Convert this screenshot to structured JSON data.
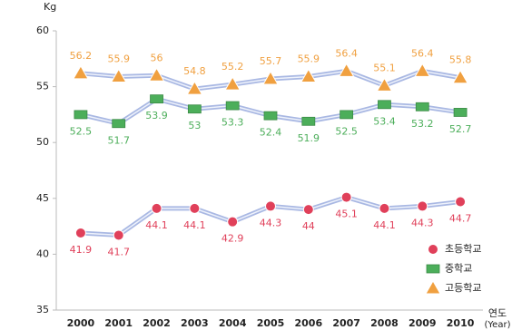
{
  "chart_data": {
    "type": "line",
    "y_label": "Kg",
    "x_label": "연도",
    "x_label_sub": "(Year)",
    "categories": [
      "2000",
      "2001",
      "2002",
      "2003",
      "2004",
      "2005",
      "2006",
      "2007",
      "2008",
      "2009",
      "2010"
    ],
    "series": [
      {
        "name": "초등학교",
        "color": "#e0405a",
        "marker": "circle",
        "label_position": "below",
        "values": [
          41.9,
          41.7,
          44.1,
          44.1,
          42.9,
          44.3,
          44,
          45.1,
          44.1,
          44.3,
          44.7
        ]
      },
      {
        "name": "중학교",
        "color": "#4cae5a",
        "marker": "square",
        "label_position": "below",
        "values": [
          52.5,
          51.7,
          53.9,
          53,
          53.3,
          52.4,
          51.9,
          52.5,
          53.4,
          53.2,
          52.7
        ]
      },
      {
        "name": "고등학교",
        "color": "#f0a040",
        "marker": "triangle",
        "label_position": "above",
        "values": [
          56.2,
          55.9,
          56,
          54.8,
          55.2,
          55.7,
          55.9,
          56.4,
          55.1,
          56.4,
          55.8
        ]
      }
    ],
    "ylim": [
      35,
      60
    ],
    "yticks": [
      35,
      40,
      45,
      50,
      55,
      60
    ],
    "legend": "lower right"
  }
}
